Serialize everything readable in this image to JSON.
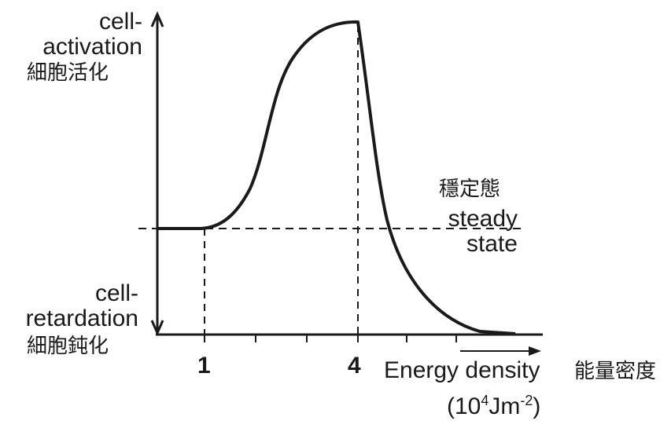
{
  "labels": {
    "activation_en": "cell-\nactivation",
    "activation_zh": "細胞活化",
    "retardation_en": "cell-\nretardation",
    "retardation_zh": "細胞鈍化",
    "steady_zh": "穩定態",
    "steady_en": "steady\nstate",
    "x_label_en": "Energy density",
    "x_label_zh": "能量密度",
    "x_unit_prefix": "(10",
    "x_unit_exp1": "4",
    "x_unit_mid": "Jm",
    "x_unit_exp2": "-2",
    "x_unit_suffix": ")"
  },
  "ticks": [
    {
      "value": "1",
      "label": "1"
    },
    {
      "value": "4",
      "label": "4"
    }
  ],
  "colors": {
    "ink": "#1a1a1a"
  }
}
